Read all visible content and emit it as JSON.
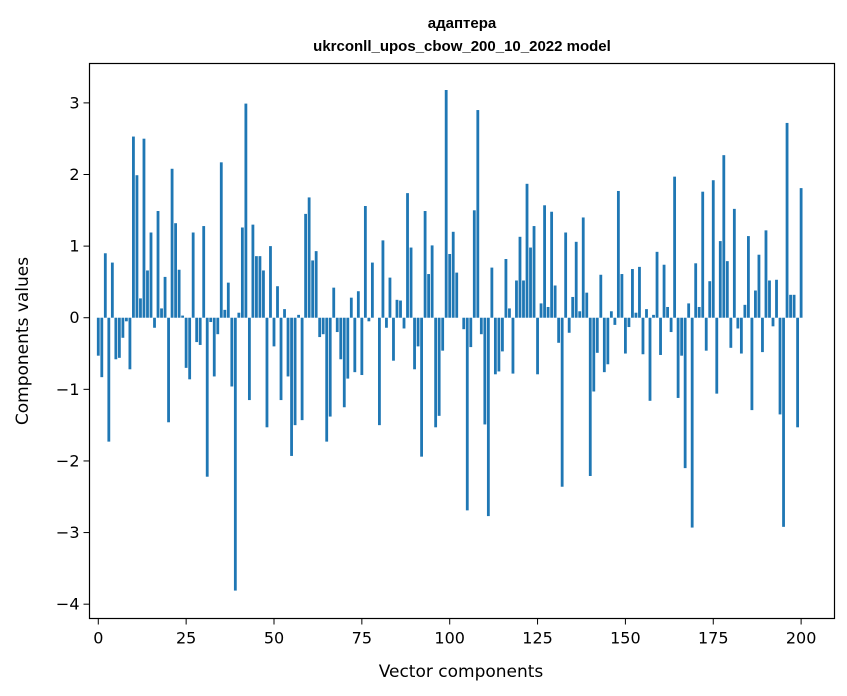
{
  "chart_data": {
    "type": "bar",
    "title_line1": "адаптера",
    "title_line2": "ukrconll_upos_cbow_200_10_2022 model",
    "xlabel": "Vector components",
    "ylabel": "Components values",
    "xlim": [
      -2.5,
      209.5
    ],
    "ylim": [
      -4.2,
      3.55
    ],
    "xticks": [
      0,
      25,
      50,
      75,
      100,
      125,
      150,
      175,
      200
    ],
    "xtick_labels": [
      "0",
      "25",
      "50",
      "75",
      "100",
      "125",
      "150",
      "175",
      "200"
    ],
    "yticks": [
      -4,
      -3,
      -2,
      -1,
      0,
      1,
      2,
      3
    ],
    "ytick_labels": [
      "−4",
      "−3",
      "−2",
      "−1",
      "0",
      "1",
      "2",
      "3"
    ],
    "bar_color": "#1f77b4",
    "values": [
      -0.53,
      -0.83,
      0.9,
      -1.73,
      0.77,
      -0.58,
      -0.56,
      -0.28,
      -0.05,
      -0.72,
      2.53,
      1.99,
      0.27,
      2.5,
      0.66,
      1.19,
      -0.14,
      1.49,
      0.13,
      0.57,
      -1.46,
      2.08,
      1.32,
      0.67,
      0.03,
      -0.7,
      -0.86,
      1.19,
      -0.34,
      -0.38,
      1.28,
      -2.22,
      -0.06,
      -0.82,
      -0.23,
      2.17,
      0.11,
      0.49,
      -0.96,
      -3.81,
      0.07,
      1.26,
      2.99,
      -1.15,
      1.3,
      0.86,
      0.86,
      0.66,
      -1.53,
      1.0,
      -0.4,
      0.44,
      -1.15,
      0.12,
      -0.82,
      -1.93,
      -1.5,
      0.04,
      -1.43,
      1.45,
      1.68,
      0.8,
      0.93,
      -0.27,
      -0.23,
      -1.73,
      -1.38,
      0.42,
      -0.2,
      -0.58,
      -1.25,
      -0.85,
      0.28,
      -0.76,
      0.37,
      -0.8,
      1.56,
      -0.05,
      0.77,
      0.0,
      -1.5,
      1.08,
      -0.14,
      0.56,
      -0.6,
      0.25,
      0.24,
      -0.15,
      1.74,
      0.98,
      -0.72,
      -0.4,
      -1.94,
      1.49,
      0.61,
      1.01,
      -1.53,
      -1.37,
      -0.46,
      3.18,
      0.89,
      1.2,
      0.63,
      0.0,
      -0.16,
      -2.69,
      -0.41,
      1.5,
      2.9,
      -0.23,
      -1.49,
      -2.77,
      0.7,
      -0.79,
      -0.75,
      -0.47,
      0.82,
      0.13,
      -0.78,
      0.52,
      1.13,
      0.52,
      1.87,
      0.98,
      1.28,
      -0.79,
      0.2,
      1.57,
      0.15,
      1.48,
      0.45,
      -0.35,
      -2.36,
      1.19,
      -0.21,
      0.29,
      1.06,
      0.09,
      1.4,
      0.35,
      -2.21,
      -1.03,
      -0.49,
      0.6,
      -0.76,
      -0.65,
      0.09,
      -0.1,
      1.77,
      0.61,
      -0.5,
      -0.13,
      0.68,
      0.07,
      0.71,
      -0.51,
      0.12,
      -1.16,
      0.04,
      0.92,
      -0.52,
      0.74,
      0.15,
      -0.2,
      1.97,
      -1.12,
      -0.53,
      -2.1,
      0.2,
      -2.93,
      0.76,
      0.15,
      1.76,
      -0.46,
      0.51,
      1.92,
      -1.06,
      1.07,
      2.27,
      0.79,
      -0.42,
      1.52,
      -0.15,
      -0.5,
      0.18,
      1.14,
      -1.29,
      0.38,
      0.88,
      -0.48,
      1.22,
      0.52,
      -0.12,
      0.53,
      -1.35,
      -2.92,
      2.72,
      0.32,
      0.32,
      -1.53,
      1.81
    ]
  }
}
